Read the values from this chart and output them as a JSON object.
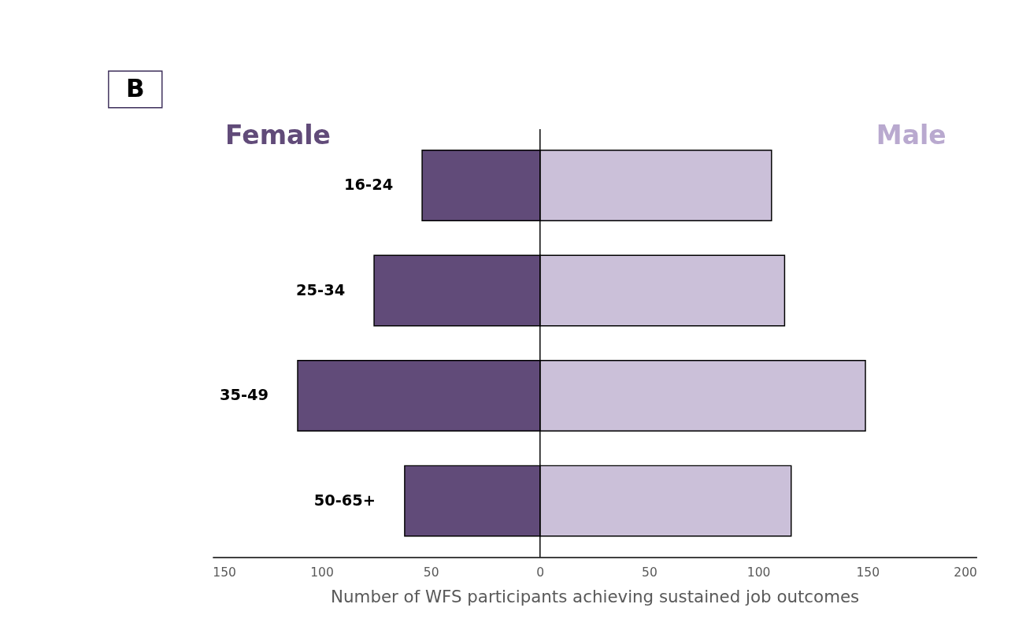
{
  "chart_data": {
    "type": "bar",
    "orientation": "horizontal",
    "xlabel": "Number of WFS participants achieving sustained job outcomes",
    "categories": [
      "16-24",
      "25-34",
      "35-49",
      "50-65+"
    ],
    "series": [
      {
        "name": "Female",
        "color": "#614b79",
        "values": [
          -54,
          -76,
          -111,
          -62
        ]
      },
      {
        "name": "Male",
        "color": "#cbc0d9",
        "values": [
          106,
          112,
          149,
          115
        ]
      }
    ],
    "xlim": [
      -150,
      200
    ],
    "xticks": [
      {
        "value": -150,
        "label": "150"
      },
      {
        "value": -100,
        "label": "100"
      },
      {
        "value": -50,
        "label": "50"
      },
      {
        "value": 0,
        "label": "0"
      },
      {
        "value": 50,
        "label": "50"
      },
      {
        "value": 100,
        "label": "100"
      },
      {
        "value": 150,
        "label": "150"
      },
      {
        "value": 200,
        "label": "200"
      }
    ],
    "ref_lines": [
      {
        "axis": "x",
        "value": 0,
        "color": "#000000"
      }
    ],
    "annotations": [
      "B"
    ],
    "stacked": true,
    "legend": false,
    "grid": false
  }
}
